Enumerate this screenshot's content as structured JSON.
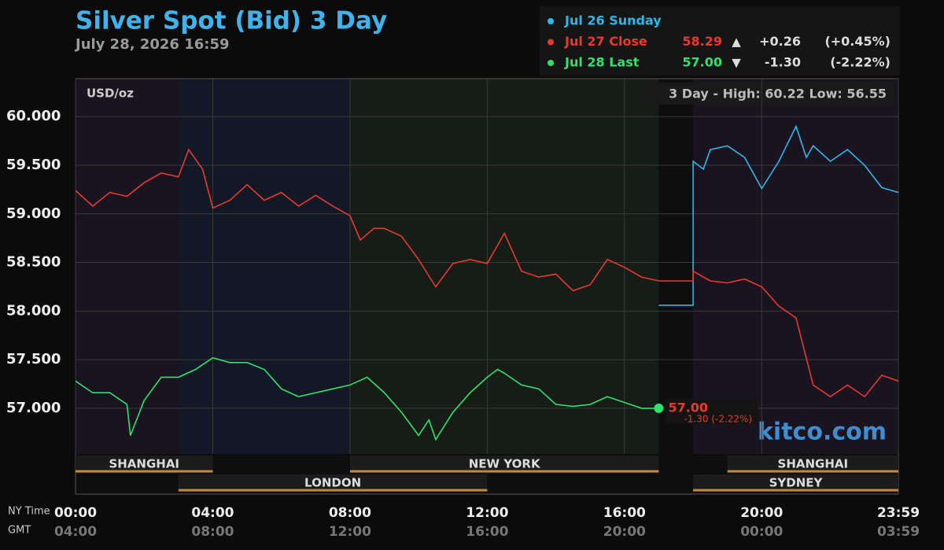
{
  "chart_data": {
    "type": "line",
    "title": "Silver Spot (Bid) 3 Day",
    "subtitle": "July 28, 2026 16:59",
    "y_unit": "USD/oz",
    "range_note": "3 Day - High: 60.22  Low: 56.55",
    "watermark": "kitco.com",
    "x_row_names": [
      "NY Time",
      "GMT"
    ],
    "xlim": [
      0,
      23.983
    ],
    "xticks": [
      {
        "value": 0,
        "label": "00:00"
      },
      {
        "value": 4,
        "label": "04:00"
      },
      {
        "value": 8,
        "label": "08:00"
      },
      {
        "value": 12,
        "label": "12:00"
      },
      {
        "value": 16,
        "label": "16:00"
      },
      {
        "value": 20,
        "label": "20:00"
      },
      {
        "value": 23.983,
        "label": "23:59"
      }
    ],
    "gmt_tick_labels": [
      "04:00",
      "08:00",
      "12:00",
      "16:00",
      "20:00",
      "00:00",
      "03:59"
    ],
    "ylim": [
      56.53,
      60.39
    ],
    "yticks": [
      {
        "value": 57,
        "label": "57.000"
      },
      {
        "value": 57.5,
        "label": "57.500"
      },
      {
        "value": 58,
        "label": "58.000"
      },
      {
        "value": 58.5,
        "label": "58.500"
      },
      {
        "value": 59,
        "label": "59.000"
      },
      {
        "value": 59.5,
        "label": "59.500"
      },
      {
        "value": 60,
        "label": "60.000"
      }
    ],
    "grid": true,
    "sessions": [
      {
        "name": "SHANGHAI",
        "start": 0,
        "end": 4,
        "row": 0
      },
      {
        "name": "LONDON",
        "start": 3,
        "end": 12,
        "row": 1
      },
      {
        "name": "NEW YORK",
        "start": 8,
        "end": 17,
        "row": 0
      },
      {
        "name": "SYDNEY",
        "start": 18,
        "end": 23.983,
        "row": 1
      },
      {
        "name": "SHANGHAI",
        "start": 19,
        "end": 23.983,
        "row": 0
      }
    ],
    "series": [
      {
        "name": "Jul 26 Sunday",
        "color": "#2bb8ea",
        "x": [
          17,
          18,
          18,
          18.3,
          18.5,
          19,
          19.5,
          20,
          20.5,
          21,
          21.3,
          21.5,
          22,
          22.5,
          23,
          23.5,
          23.983
        ],
        "values": [
          58.06,
          58.06,
          59.54,
          59.46,
          59.66,
          59.7,
          59.58,
          59.26,
          59.54,
          59.9,
          59.58,
          59.7,
          59.54,
          59.66,
          59.5,
          59.27,
          59.22
        ]
      },
      {
        "name": "Jul 27 Close",
        "color": "#e8392f",
        "price": "58.29",
        "arrow": "▲",
        "change": "+0.26",
        "pct": "(+0.45%)",
        "x": [
          0,
          0.5,
          1,
          1.5,
          2,
          2.5,
          3,
          3.3,
          3.7,
          4,
          4.5,
          5,
          5.5,
          6,
          6.5,
          7,
          7.5,
          8,
          8.3,
          8.7,
          9,
          9.5,
          10,
          10.5,
          11,
          11.5,
          12,
          12.5,
          13,
          13.5,
          14,
          14.5,
          15,
          15.5,
          16,
          16.5,
          17,
          18,
          18,
          18.5,
          19,
          19.5,
          20,
          20.5,
          21,
          21.5,
          22,
          22.5,
          23,
          23.5,
          23.983
        ],
        "values": [
          59.24,
          59.08,
          59.22,
          59.18,
          59.32,
          59.42,
          59.38,
          59.66,
          59.46,
          59.06,
          59.14,
          59.3,
          59.14,
          59.22,
          59.08,
          59.19,
          59.08,
          58.98,
          58.73,
          58.85,
          58.85,
          58.77,
          58.53,
          58.25,
          58.49,
          58.53,
          58.49,
          58.8,
          58.41,
          58.35,
          58.38,
          58.21,
          58.27,
          58.53,
          58.45,
          58.35,
          58.31,
          58.31,
          58.41,
          58.31,
          58.29,
          58.33,
          58.25,
          58.05,
          57.93,
          57.24,
          57.12,
          57.24,
          57.12,
          57.34,
          57.28
        ]
      },
      {
        "name": "Jul 28 Last",
        "color": "#2ee26b",
        "price": "57.00",
        "arrow": "▼",
        "change": "-1.30",
        "pct": "(-2.22%)",
        "x": [
          0,
          0.5,
          1,
          1.5,
          1.6,
          2,
          2.5,
          3,
          3.5,
          4,
          4.5,
          5,
          5.5,
          6,
          6.5,
          7,
          7.5,
          8,
          8.5,
          9,
          9.5,
          10,
          10.3,
          10.5,
          11,
          11.5,
          12,
          12.3,
          12.5,
          13,
          13.5,
          14,
          14.5,
          15,
          15.5,
          16,
          16.5,
          17
        ],
        "values": [
          57.28,
          57.16,
          57.16,
          57.04,
          56.72,
          57.08,
          57.32,
          57.32,
          57.4,
          57.52,
          57.47,
          57.47,
          57.4,
          57.2,
          57.12,
          57.16,
          57.2,
          57.24,
          57.32,
          57.16,
          56.96,
          56.72,
          56.88,
          56.68,
          56.96,
          57.16,
          57.32,
          57.4,
          57.36,
          57.24,
          57.2,
          57.04,
          57.02,
          57.04,
          57.12,
          57.06,
          57.0,
          57.0
        ],
        "last_label": "57.00",
        "last_change": "-1.30 (-2.22%)"
      }
    ]
  }
}
